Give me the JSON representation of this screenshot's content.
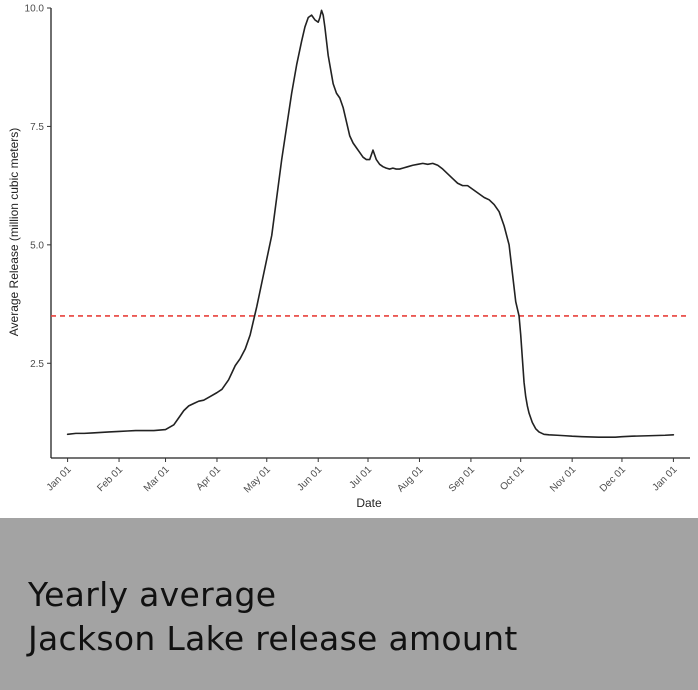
{
  "caption": {
    "line1": "Yearly average",
    "line2": "Jackson Lake release amount",
    "background_color": "#a3a3a3"
  },
  "chart_data": {
    "type": "line",
    "xlabel": "Date",
    "ylabel": "Average Release (million cubic meters)",
    "x_ticks": [
      "Jan 01",
      "Feb 01",
      "Mar 01",
      "Apr 01",
      "May 01",
      "Jun 01",
      "Jul 01",
      "Aug 01",
      "Sep 01",
      "Oct 01",
      "Nov 01",
      "Dec 01",
      "Jan 01"
    ],
    "x_tick_days": [
      0,
      31,
      59,
      90,
      120,
      151,
      181,
      212,
      243,
      273,
      304,
      334,
      365
    ],
    "y_ticks": [
      "2.5",
      "5.0",
      "7.5",
      "10.0"
    ],
    "y_tick_values": [
      2.5,
      5.0,
      7.5,
      10.0
    ],
    "xlim": [
      -10,
      375
    ],
    "ylim": [
      0.5,
      10.0
    ],
    "grid": false,
    "line_color": "#222222",
    "reference_line": {
      "y": 3.5,
      "color": "#e8413b",
      "style": "dashed"
    },
    "series": [
      {
        "x": [
          0,
          5,
          10,
          15,
          20,
          25,
          31,
          36,
          41,
          46,
          52,
          59,
          64,
          67,
          70,
          73,
          76,
          79,
          82,
          86,
          90,
          93,
          95,
          97,
          99,
          101,
          104,
          107,
          110,
          114,
          117,
          120,
          123,
          126,
          129,
          132,
          135,
          138,
          141,
          143,
          145,
          147,
          149,
          151,
          152,
          153,
          154,
          155,
          156,
          157,
          158,
          159,
          160,
          161,
          162,
          164,
          166,
          168,
          170,
          172,
          174,
          176,
          178,
          180,
          182,
          184,
          186,
          188,
          190,
          192,
          194,
          196,
          198,
          200,
          202,
          205,
          208,
          211,
          214,
          217,
          220,
          223,
          226,
          229,
          232,
          235,
          238,
          241,
          243,
          245,
          247,
          249,
          251,
          254,
          257,
          260,
          263,
          266,
          268,
          270,
          272,
          273,
          274,
          275,
          276,
          277,
          278,
          280,
          282,
          284,
          287,
          290,
          295,
          300,
          304,
          310,
          320,
          330,
          334,
          340,
          350,
          360,
          365
        ],
        "y": [
          1.0,
          1.02,
          1.02,
          1.03,
          1.04,
          1.05,
          1.06,
          1.07,
          1.08,
          1.08,
          1.08,
          1.1,
          1.2,
          1.35,
          1.5,
          1.6,
          1.65,
          1.7,
          1.72,
          1.8,
          1.88,
          1.95,
          2.05,
          2.15,
          2.3,
          2.45,
          2.6,
          2.8,
          3.1,
          3.7,
          4.2,
          4.7,
          5.2,
          6.0,
          6.8,
          7.5,
          8.2,
          8.8,
          9.3,
          9.6,
          9.8,
          9.85,
          9.75,
          9.7,
          9.8,
          9.95,
          9.85,
          9.6,
          9.3,
          9.0,
          8.8,
          8.6,
          8.4,
          8.3,
          8.2,
          8.1,
          7.9,
          7.6,
          7.3,
          7.15,
          7.05,
          6.95,
          6.85,
          6.8,
          6.8,
          7.0,
          6.8,
          6.7,
          6.65,
          6.62,
          6.6,
          6.62,
          6.6,
          6.6,
          6.62,
          6.65,
          6.68,
          6.7,
          6.72,
          6.7,
          6.72,
          6.68,
          6.6,
          6.5,
          6.4,
          6.3,
          6.25,
          6.25,
          6.2,
          6.15,
          6.1,
          6.05,
          6.0,
          5.95,
          5.85,
          5.7,
          5.4,
          5.0,
          4.4,
          3.8,
          3.5,
          3.1,
          2.6,
          2.1,
          1.8,
          1.6,
          1.45,
          1.25,
          1.12,
          1.05,
          1.0,
          0.99,
          0.98,
          0.97,
          0.96,
          0.95,
          0.94,
          0.94,
          0.95,
          0.96,
          0.97,
          0.98,
          0.99
        ]
      }
    ]
  }
}
